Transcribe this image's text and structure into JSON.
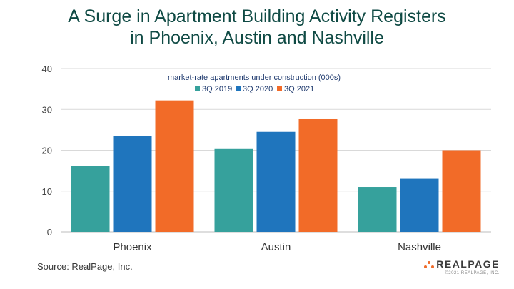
{
  "title": {
    "line1": "A Surge in Apartment Building Activity Registers",
    "line2": "in Phoenix, Austin and Nashville"
  },
  "source": "Source: RealPage, Inc.",
  "logo": {
    "word": "REALPAGE",
    "copyright": "©2021 REALPAGE, INC."
  },
  "chart_data": {
    "type": "bar",
    "title": "market-rate apartments under construction (000s)",
    "categories": [
      "Phoenix",
      "Austin",
      "Nashville"
    ],
    "series": [
      {
        "name": "3Q 2019",
        "color": "#36a19c",
        "values": [
          16.1,
          20.3,
          11.0
        ]
      },
      {
        "name": "3Q 2020",
        "color": "#1f75bd",
        "values": [
          23.5,
          24.5,
          13.0
        ]
      },
      {
        "name": "3Q 2021",
        "color": "#f26b28",
        "values": [
          32.2,
          27.6,
          20.0
        ]
      }
    ],
    "ylim": [
      0,
      40
    ],
    "yticks": [
      "0",
      "10",
      "20",
      "30",
      "40"
    ],
    "grid": true,
    "legend_position": "top-center"
  }
}
